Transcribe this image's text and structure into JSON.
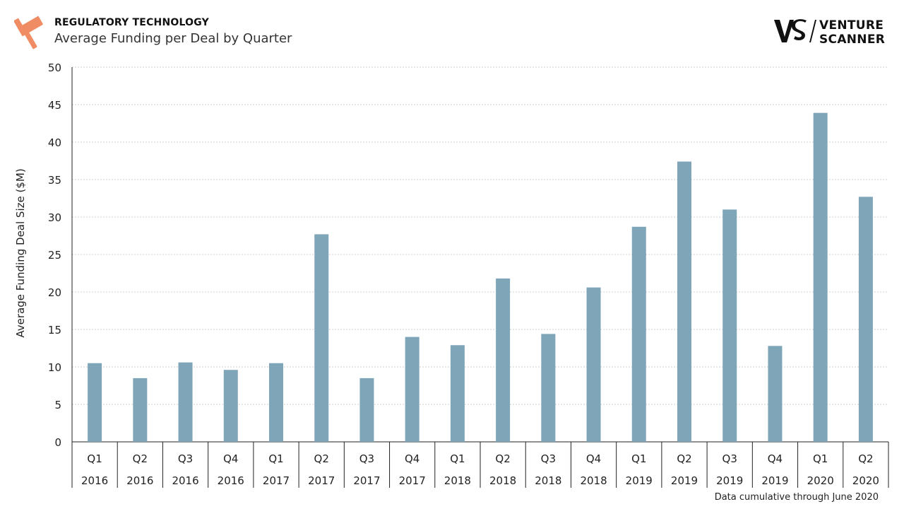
{
  "header": {
    "category": "REGULATORY TECHNOLOGY",
    "title": "Average Funding per Deal by Quarter",
    "logo_text": "VENTURE\nSCANNER",
    "gavel_color": "#f08c63"
  },
  "footnote": "Data cumulative through June 2020",
  "chart_data": {
    "type": "bar",
    "title": "Average Funding per Deal by Quarter",
    "ylabel": "Average Funding Deal Size ($M)",
    "xlabel": "",
    "ylim": [
      0,
      50
    ],
    "yticks": [
      0,
      5,
      10,
      15,
      20,
      25,
      30,
      35,
      40,
      45,
      50
    ],
    "grid": true,
    "bar_color": "#7fa5b8",
    "categories": [
      [
        "Q1",
        "2016"
      ],
      [
        "Q2",
        "2016"
      ],
      [
        "Q3",
        "2016"
      ],
      [
        "Q4",
        "2016"
      ],
      [
        "Q1",
        "2017"
      ],
      [
        "Q2",
        "2017"
      ],
      [
        "Q3",
        "2017"
      ],
      [
        "Q4",
        "2017"
      ],
      [
        "Q1",
        "2018"
      ],
      [
        "Q2",
        "2018"
      ],
      [
        "Q3",
        "2018"
      ],
      [
        "Q4",
        "2018"
      ],
      [
        "Q1",
        "2019"
      ],
      [
        "Q2",
        "2019"
      ],
      [
        "Q3",
        "2019"
      ],
      [
        "Q4",
        "2019"
      ],
      [
        "Q1",
        "2020"
      ],
      [
        "Q2",
        "2020"
      ]
    ],
    "values": [
      10.5,
      8.5,
      10.6,
      9.6,
      10.5,
      27.7,
      8.5,
      14.0,
      12.9,
      21.8,
      14.4,
      20.6,
      28.7,
      37.4,
      31.0,
      12.8,
      43.9,
      32.7
    ]
  }
}
